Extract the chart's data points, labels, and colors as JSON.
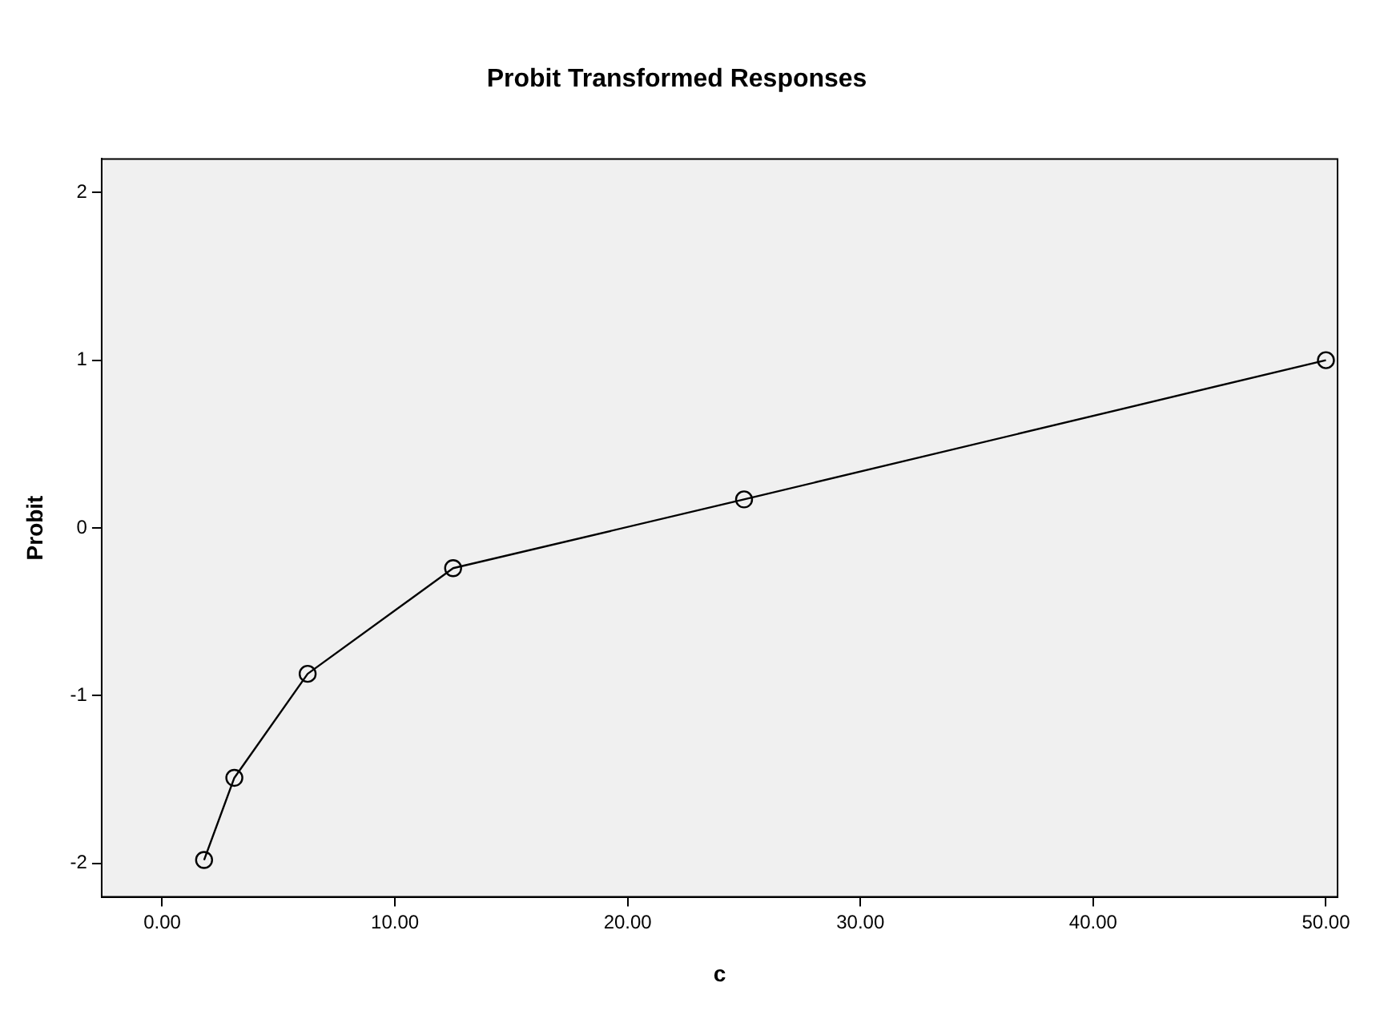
{
  "chart_data": {
    "type": "line",
    "title": "Probit Transformed Responses",
    "xlabel": "c",
    "ylabel": "Probit",
    "x": [
      1.8,
      3.1,
      6.25,
      12.5,
      25,
      50
    ],
    "series": [
      {
        "color": "#000000",
        "values": [
          -1.98,
          -1.49,
          -0.87,
          -0.24,
          0.17,
          1.0
        ]
      }
    ],
    "xlim": [
      -2.6,
      50.5
    ],
    "xticks": [
      {
        "value": 0,
        "label": "0.00"
      },
      {
        "value": 10,
        "label": "10.00"
      },
      {
        "value": 20,
        "label": "20.00"
      },
      {
        "value": 30,
        "label": "30.00"
      },
      {
        "value": 40,
        "label": "40.00"
      },
      {
        "value": 50,
        "label": "50.00"
      }
    ],
    "ylim": [
      -2.2,
      2.2
    ],
    "yticks": [
      -2,
      -1,
      0,
      1,
      2
    ],
    "grid": false,
    "legend": false,
    "marker": "circle",
    "line_style": "solid"
  }
}
